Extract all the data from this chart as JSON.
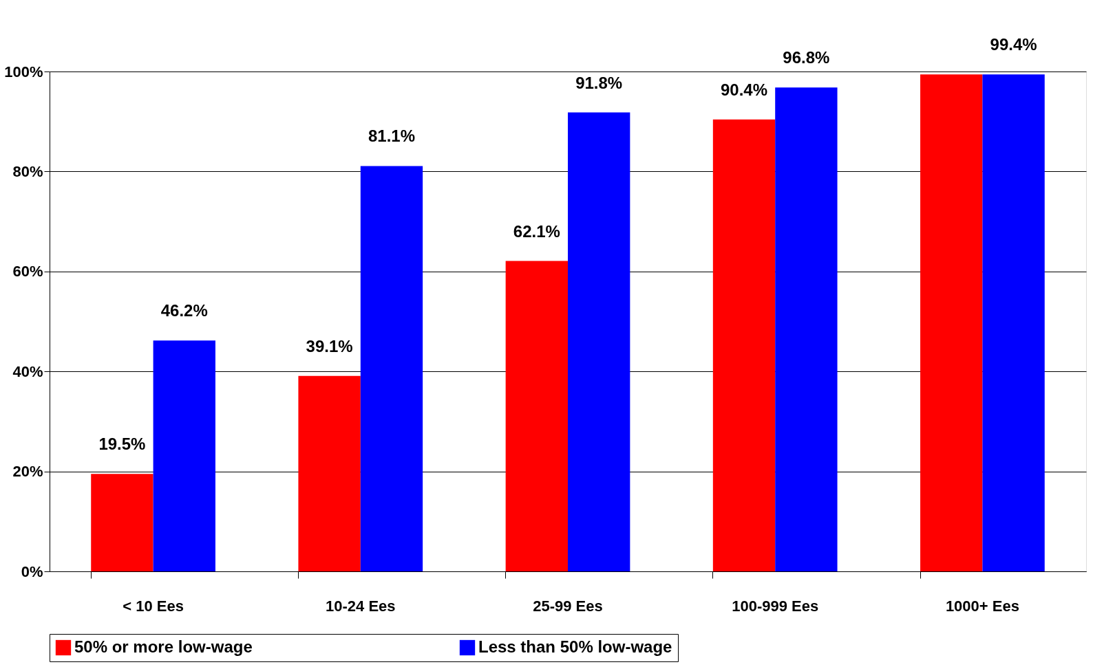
{
  "chart_data": {
    "type": "bar",
    "categories": [
      "< 10 Ees",
      "10-24 Ees",
      "25-99 Ees",
      "100-999 Ees",
      "1000+ Ees"
    ],
    "series": [
      {
        "name": "50% or more low-wage",
        "color": "#ff0000",
        "values": [
          19.5,
          39.1,
          62.1,
          90.4,
          99.4
        ],
        "value_labels": [
          "19.5%",
          "39.1%",
          "62.1%",
          "90.4%",
          null
        ]
      },
      {
        "name": "Less than 50% low-wage",
        "color": "#0000ff",
        "values": [
          46.2,
          81.1,
          91.8,
          96.8,
          99.4
        ],
        "value_labels": [
          "46.2%",
          "81.1%",
          "91.8%",
          "96.8%",
          "99.4%"
        ]
      }
    ],
    "ylim": [
      0,
      100
    ],
    "yticks": [
      {
        "value": 0,
        "label": "0%"
      },
      {
        "value": 20,
        "label": "20%"
      },
      {
        "value": 40,
        "label": "40%"
      },
      {
        "value": 60,
        "label": "60%"
      },
      {
        "value": 80,
        "label": "80%"
      },
      {
        "value": 100,
        "label": "100%"
      }
    ],
    "grid": "y",
    "legend": "bottom"
  }
}
